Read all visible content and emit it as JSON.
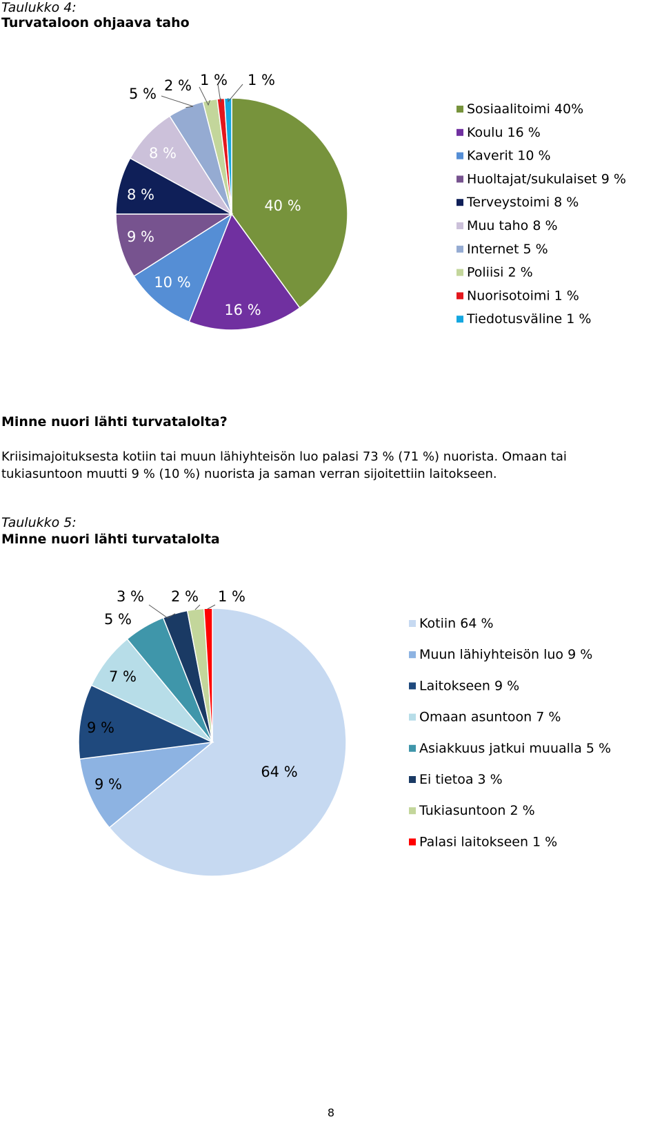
{
  "table4": {
    "caption_number": "Taulukko 4:",
    "caption_title": "Turvataloon ohjaava taho"
  },
  "section": {
    "heading": "Minne nuori lähti turvatalolta?",
    "paragraph_line1": "Kriisimajoituksesta kotiin tai muun lähiyhteisön luo palasi 73 % (71 %) nuorista. Omaan tai",
    "paragraph_line2": "tukiasuntoon muutti 9 % (10 %) nuorista ja saman verran sijoitettiin laitokseen."
  },
  "table5": {
    "caption_number": "Taulukko 5:",
    "caption_title": "Minne nuori lähti turvatalolta"
  },
  "page_number": "8",
  "chart_data": [
    {
      "type": "pie",
      "title": "",
      "legend_position": "right",
      "slices": [
        {
          "label": "Sosiaalitoimi 40%",
          "value": 40,
          "value_label": "40 %",
          "color": "#77933c"
        },
        {
          "label": "Koulu 16 %",
          "value": 16,
          "value_label": "16 %",
          "color": "#7030a0"
        },
        {
          "label": "Kaverit 10 %",
          "value": 10,
          "value_label": "10 %",
          "color": "#558ed5"
        },
        {
          "label": "Huoltajat/sukulaiset 9 %",
          "value": 9,
          "value_label": "9 %",
          "color": "#77538f"
        },
        {
          "label": "Terveystoimi 8 %",
          "value": 8,
          "value_label": "8 %",
          "color": "#0f1f58"
        },
        {
          "label": "Muu taho 8 %",
          "value": 8,
          "value_label": "8 %",
          "color": "#ccc1da"
        },
        {
          "label": "Internet 5 %",
          "value": 5,
          "value_label": "5 %",
          "color": "#95abd2"
        },
        {
          "label": "Poliisi 2 %",
          "value": 2,
          "value_label": "2 %",
          "color": "#c3d69b"
        },
        {
          "label": "Nuorisotoimi 1 %",
          "value": 1,
          "value_label": "1 %",
          "color": "#e3171d"
        },
        {
          "label": "Tiedotusväline 1 %",
          "value": 1,
          "value_label": "1 %",
          "color": "#14a7e0"
        }
      ]
    },
    {
      "type": "pie",
      "title": "",
      "legend_position": "right",
      "slices": [
        {
          "label": "Kotiin 64 %",
          "value": 64,
          "value_label": "64 %",
          "color": "#c6d9f1"
        },
        {
          "label": "Muun lähiyhteisön luo 9 %",
          "value": 9,
          "value_label": "9 %",
          "color": "#8db3e2"
        },
        {
          "label": "Laitokseen 9 %",
          "value": 9,
          "value_label": "9 %",
          "color": "#1f497d"
        },
        {
          "label": "Omaan asuntoon 7 %",
          "value": 7,
          "value_label": "7 %",
          "color": "#b7dde8"
        },
        {
          "label": "Asiakkuus jatkui muualla 5 %",
          "value": 5,
          "value_label": "5 %",
          "color": "#3f96aa"
        },
        {
          "label": "Ei tietoa 3 %",
          "value": 3,
          "value_label": "3 %",
          "color": "#1a3a64"
        },
        {
          "label": "Tukiasuntoon 2 %",
          "value": 2,
          "value_label": "2 %",
          "color": "#c3d69b"
        },
        {
          "label": "Palasi laitokseen 1 %",
          "value": 1,
          "value_label": "1 %",
          "color": "#ff0000"
        }
      ]
    }
  ]
}
